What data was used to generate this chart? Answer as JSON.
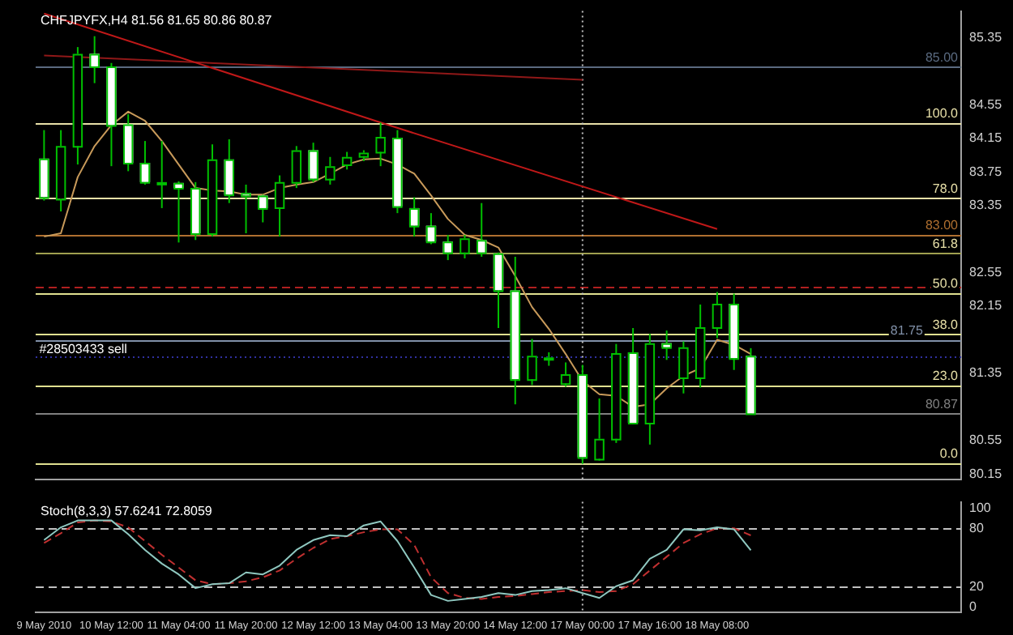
{
  "chart_data": [
    {
      "type": "candlestick",
      "title": "CHFJPYFX,H4 81.56 81.65 80.86 80.87",
      "categories": [
        "9 May 2010",
        null,
        null,
        null,
        "10 May 12:00",
        null,
        null,
        null,
        "11 May 04:00",
        null,
        null,
        null,
        "11 May 20:00",
        null,
        null,
        null,
        "12 May 12:00",
        null,
        null,
        null,
        "13 May 04:00",
        null,
        null,
        null,
        "13 May 20:00",
        null,
        null,
        null,
        "14 May 12:00",
        null,
        null,
        null,
        "17 May 00:00",
        null,
        null,
        null,
        "17 May 16:00",
        null,
        null,
        null,
        "18 May 08:00",
        null,
        null,
        null,
        null,
        null,
        null,
        null,
        null,
        null,
        null,
        null,
        null,
        null,
        null
      ],
      "ohlc": [
        [
          83.91,
          84.25,
          83.41,
          83.45
        ],
        [
          83.43,
          84.25,
          83.28,
          84.06
        ],
        [
          84.06,
          85.24,
          83.84,
          85.16
        ],
        [
          85.16,
          85.37,
          84.81,
          85.01
        ],
        [
          85.01,
          85.05,
          83.82,
          84.31
        ],
        [
          84.32,
          84.44,
          83.76,
          83.86
        ],
        [
          83.86,
          84.12,
          83.6,
          83.63
        ],
        [
          83.62,
          84.12,
          83.32,
          83.63
        ],
        [
          83.62,
          83.64,
          82.91,
          83.56
        ],
        [
          83.56,
          83.63,
          82.94,
          83.02
        ],
        [
          83.02,
          84.08,
          82.98,
          83.9
        ],
        [
          83.9,
          84.14,
          83.38,
          83.48
        ],
        [
          83.5,
          83.6,
          83.02,
          83.47
        ],
        [
          83.47,
          83.48,
          83.15,
          83.32
        ],
        [
          83.33,
          83.71,
          82.98,
          83.63
        ],
        [
          83.63,
          84.06,
          83.56,
          84.01
        ],
        [
          84.01,
          84.1,
          83.63,
          83.67
        ],
        [
          83.67,
          83.93,
          83.6,
          83.82
        ],
        [
          83.84,
          83.99,
          83.78,
          83.93
        ],
        [
          83.94,
          84.01,
          83.88,
          83.98
        ],
        [
          83.99,
          84.34,
          83.82,
          84.17
        ],
        [
          84.16,
          84.25,
          83.26,
          83.34
        ],
        [
          83.32,
          83.45,
          82.98,
          83.11
        ],
        [
          83.11,
          83.26,
          82.89,
          82.92
        ],
        [
          82.92,
          83.0,
          82.7,
          82.79
        ],
        [
          82.79,
          83.0,
          82.72,
          82.96
        ],
        [
          82.94,
          83.38,
          82.74,
          82.79
        ],
        [
          82.78,
          82.79,
          81.89,
          82.34
        ],
        [
          82.34,
          82.74,
          80.98,
          81.28
        ],
        [
          81.28,
          81.76,
          81.21,
          81.56
        ],
        [
          81.52,
          81.6,
          81.44,
          81.54
        ],
        [
          81.23,
          81.48,
          81.19,
          81.34
        ],
        [
          81.34,
          81.45,
          80.27,
          80.35
        ],
        [
          80.33,
          81.05,
          80.31,
          80.57
        ],
        [
          80.57,
          81.7,
          80.52,
          81.59
        ],
        [
          81.6,
          81.89,
          80.74,
          80.76
        ],
        [
          80.76,
          81.82,
          80.5,
          81.71
        ],
        [
          81.71,
          81.86,
          81.51,
          81.66
        ],
        [
          81.3,
          81.73,
          81.11,
          81.66
        ],
        [
          81.3,
          82.17,
          81.18,
          81.9
        ],
        [
          81.9,
          82.32,
          81.77,
          82.18
        ],
        [
          82.18,
          82.3,
          81.39,
          81.53
        ],
        [
          81.56,
          81.65,
          80.86,
          80.87
        ],
        null,
        null,
        null,
        null,
        null,
        null,
        null,
        null,
        null,
        null,
        null,
        null
      ],
      "color": "#00c000",
      "colors": [
        "#ffffff",
        "#000000",
        "#000000",
        "#ffffff",
        "#ffffff",
        "#ffffff",
        "#ffffff",
        "#000000",
        "#ffffff",
        "#ffffff",
        "#000000",
        "#ffffff",
        "#ffffff",
        "#ffffff",
        "#000000",
        "#000000",
        "#ffffff",
        "#000000",
        "#000000",
        "#000000",
        "#000000",
        "#ffffff",
        "#ffffff",
        "#ffffff",
        "#ffffff",
        "#000000",
        "#ffffff",
        "#ffffff",
        "#ffffff",
        "#000000",
        "#000000",
        "#000000",
        "#ffffff",
        "#000000",
        "#000000",
        "#ffffff",
        "#000000",
        "#ffffff",
        "#000000",
        "#000000",
        "#000000",
        "#ffffff",
        "#ffffff",
        null,
        null,
        null,
        null,
        null,
        null,
        null,
        null,
        null,
        null,
        null,
        null
      ],
      "series": [
        {
          "type": "line",
          "color": "#c89a5a",
          "values": [
            82.98,
            83.02,
            83.69,
            84.06,
            84.31,
            84.47,
            84.36,
            84.12,
            83.84,
            83.56,
            83.53,
            83.52,
            83.48,
            83.48,
            83.56,
            83.6,
            83.63,
            83.73,
            83.84,
            83.9,
            83.91,
            83.84,
            83.73,
            83.47,
            83.19,
            83.0,
            82.94,
            82.85,
            82.51,
            82.14,
            81.88,
            81.58,
            81.26,
            81.1,
            81.08,
            80.95,
            80.98,
            81.17,
            81.32,
            81.41,
            81.75,
            81.69,
            81.58,
            null,
            null,
            null,
            null,
            null,
            null,
            null,
            null,
            null,
            null,
            null,
            null
          ]
        },
        {
          "type": "line",
          "color": "#c01818",
          "x": [
            "9 May 2010",
            "13 May 04:00",
            "18 May 08:00"
          ],
          "values": [
            85.64,
            84.34,
            83.07
          ]
        },
        {
          "type": "line",
          "color": "#901818",
          "x": [
            "9 May 2010",
            "17 May 00:00"
          ],
          "values": [
            85.14,
            84.85
          ]
        }
      ],
      "ylim": [
        80.08,
        85.67
      ],
      "yticks": [
        85.35,
        84.55,
        84.15,
        83.75,
        83.35,
        82.55,
        82.15,
        81.35,
        80.55,
        80.15
      ],
      "ref_lines": [
        {
          "axis": "y",
          "value": 85.0,
          "label": "85.00",
          "color": "#5a6a80"
        },
        {
          "axis": "y",
          "value": 84.34,
          "color": "#e8e0a8"
        },
        {
          "axis": "y",
          "value": 83.44,
          "color": "#e8e0a8"
        },
        {
          "axis": "y",
          "value": 83.0,
          "label": "83.00",
          "color": "#b07030"
        },
        {
          "axis": "y",
          "value": 82.78,
          "color": "#a0a050"
        },
        {
          "axis": "y",
          "value": 82.38,
          "color": "#b02020",
          "line_style": "dashed"
        },
        {
          "axis": "y",
          "value": 82.31,
          "color": "#e0e090"
        },
        {
          "axis": "y",
          "value": 81.82,
          "color": "#e0e090"
        },
        {
          "axis": "y",
          "value": 81.75,
          "label": "81.75",
          "color": "#8090a8"
        },
        {
          "axis": "y",
          "value": 81.56,
          "color": "#3030a0",
          "line_style": "dotted"
        },
        {
          "axis": "y",
          "value": 81.21,
          "color": "#e0e090"
        },
        {
          "axis": "y",
          "value": 80.87,
          "label": "80.87",
          "color": "#808080"
        },
        {
          "axis": "y",
          "value": 80.28,
          "color": "#e0e090"
        },
        {
          "axis": "x",
          "value": "17 May 00:00",
          "color": "#c0c0c0",
          "line_style": "dotted"
        }
      ],
      "annotations": [
        {
          "text": "#28503433 sell",
          "x": "9 May 2010",
          "y": 81.75
        },
        {
          "text": "100.0",
          "y": 84.34
        },
        {
          "text": "78.0",
          "y": 83.44
        },
        {
          "text": "61.8",
          "y": 82.78
        },
        {
          "text": "50.0",
          "y": 82.31
        },
        {
          "text": "38.0",
          "y": 81.82
        },
        {
          "text": "23.0",
          "y": 81.21
        },
        {
          "text": "0.0",
          "y": 80.28
        }
      ],
      "tick_labels": "y",
      "marker": "none",
      "legend": false,
      "grid": false
    },
    {
      "type": "line",
      "title": "Stoch(8,3,3) 57.6241 72.8059",
      "categories": [
        "9 May 2010",
        null,
        null,
        null,
        "10 May 12:00",
        null,
        null,
        null,
        "11 May 04:00",
        null,
        null,
        null,
        "11 May 20:00",
        null,
        null,
        null,
        "12 May 12:00",
        null,
        null,
        null,
        "13 May 04:00",
        null,
        null,
        null,
        "13 May 20:00",
        null,
        null,
        null,
        "14 May 12:00",
        null,
        null,
        null,
        "17 May 00:00",
        null,
        null,
        null,
        "17 May 16:00",
        null,
        null,
        null,
        "18 May 08:00",
        null,
        null,
        null,
        null,
        null,
        null,
        null,
        null,
        null,
        null,
        null,
        null,
        null,
        null
      ],
      "series": [
        {
          "color": "#8fc8c0",
          "values": [
            68,
            81,
            88,
            88,
            88,
            74,
            58,
            44,
            33,
            19,
            23,
            24,
            35,
            33,
            42,
            58,
            68,
            73,
            72,
            83,
            87,
            67,
            40,
            12,
            6,
            8,
            10,
            14,
            12,
            16,
            17,
            19,
            14,
            9,
            21,
            27,
            49,
            58,
            79,
            78,
            81,
            79,
            57.6241,
            null,
            null,
            null,
            null,
            null,
            null,
            null,
            null,
            null,
            null,
            null,
            null
          ]
        },
        {
          "color": "#c03030",
          "line_style": "dashed",
          "values": [
            65,
            75,
            86,
            88,
            87,
            81,
            67,
            53,
            40,
            27,
            23,
            24,
            26,
            30,
            37,
            49,
            60,
            69,
            72,
            76,
            79,
            79,
            63,
            30,
            14,
            9,
            8,
            10,
            11,
            13,
            15,
            16,
            17,
            15,
            16,
            23,
            37,
            51,
            65,
            74,
            80,
            80,
            72.8059,
            null,
            null,
            null,
            null,
            null,
            null,
            null,
            null,
            null,
            null,
            null,
            null
          ]
        }
      ],
      "ylim": [
        -6,
        107
      ],
      "yticks": [
        0,
        20,
        80,
        100
      ],
      "ref_lines": [
        {
          "axis": "y",
          "value": 80,
          "color": "#c0c0c0",
          "line_style": "dashed"
        },
        {
          "axis": "y",
          "value": 20,
          "color": "#c0c0c0",
          "line_style": "dashed"
        },
        {
          "axis": "x",
          "value": "17 May 00:00",
          "color": "#c0c0c0",
          "line_style": "dotted"
        }
      ],
      "marker": "none",
      "legend": false,
      "grid": false
    }
  ]
}
